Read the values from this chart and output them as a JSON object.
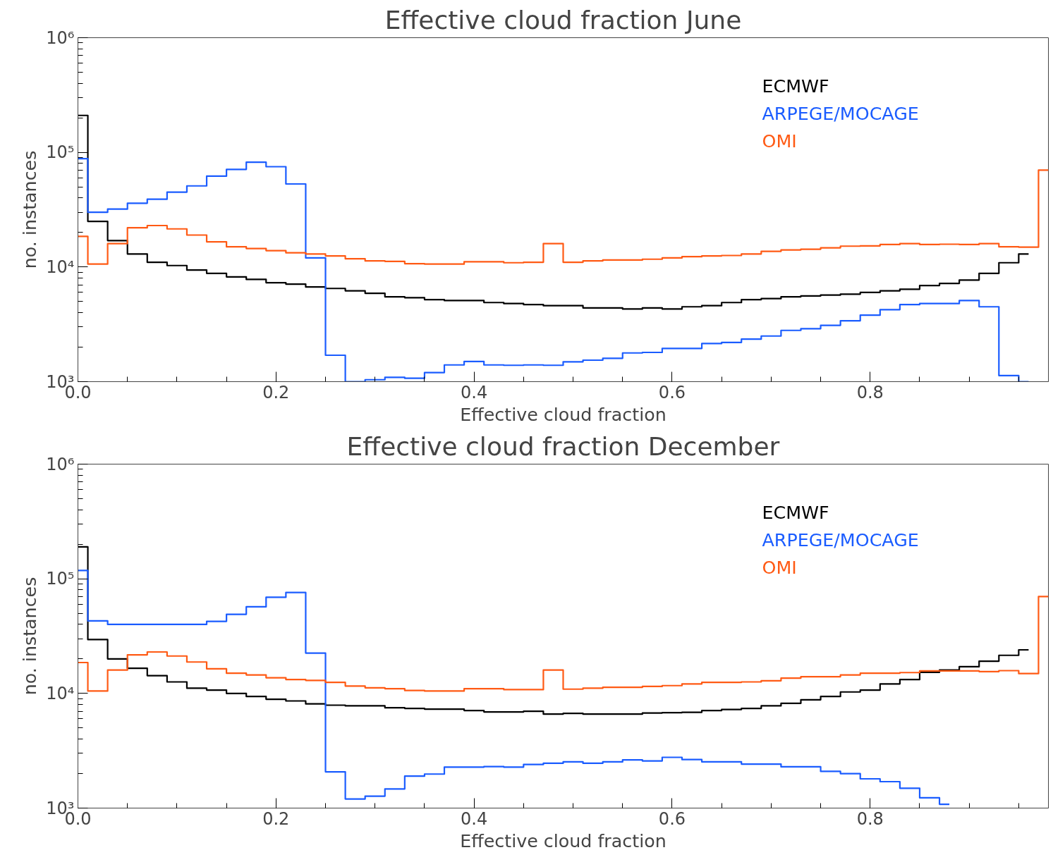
{
  "chart_data": [
    {
      "type": "step",
      "title": "Effective cloud fraction June",
      "xlabel": "Effective cloud fraction",
      "ylabel": "no. instances",
      "log": "y",
      "legend": "top right",
      "grid": false,
      "x": [
        0,
        0.02,
        0.04,
        0.06,
        0.08,
        0.1,
        0.12,
        0.14,
        0.16,
        0.18,
        0.2,
        0.22,
        0.24,
        0.26,
        0.28,
        0.3,
        0.32,
        0.34,
        0.36,
        0.38,
        0.4,
        0.42,
        0.44,
        0.46,
        0.48,
        0.5,
        0.52,
        0.54,
        0.56,
        0.58,
        0.6,
        0.62,
        0.64,
        0.66,
        0.68,
        0.7,
        0.72,
        0.74,
        0.76,
        0.78,
        0.8,
        0.82,
        0.84,
        0.86,
        0.88,
        0.9,
        0.92,
        0.94,
        0.96,
        0.98
      ],
      "xlim": [
        0,
        0.98
      ],
      "xticks": [
        {
          "value": 0,
          "label": "0.0"
        },
        0.2,
        0.4,
        0.6,
        0.8
      ],
      "ylim": [
        1000,
        1000000
      ],
      "yticks": [
        {
          "value": 1000,
          "label": "10³"
        },
        {
          "value": 10000,
          "label": "10⁴"
        },
        {
          "value": 100000,
          "label": "10⁵"
        },
        {
          "value": 1000000,
          "label": "10⁶"
        }
      ],
      "series": [
        {
          "name": "ECMWF",
          "color": "#000000",
          "values": [
            210000,
            25000,
            17000,
            13000,
            11000,
            10300,
            9400,
            8800,
            8200,
            7800,
            7300,
            7100,
            6700,
            6500,
            6200,
            5900,
            5500,
            5400,
            5200,
            5100,
            5100,
            4900,
            4800,
            4700,
            4600,
            4600,
            4400,
            4400,
            4300,
            4400,
            4300,
            4500,
            4600,
            4900,
            5200,
            5300,
            5500,
            5600,
            5700,
            5800,
            6000,
            6200,
            6400,
            6900,
            7200,
            7700,
            8800,
            10900,
            13000,
            null
          ]
        },
        {
          "name": "ARPEGE/MOCAGE",
          "color": "#1a5cff",
          "values": [
            88000,
            30000,
            32000,
            36000,
            39000,
            45000,
            51000,
            62000,
            71000,
            82000,
            75000,
            53000,
            12000,
            1700,
            1000,
            1040,
            1090,
            1070,
            1200,
            1400,
            1500,
            1400,
            1390,
            1400,
            1390,
            1490,
            1540,
            1600,
            1780,
            1800,
            1950,
            1950,
            2150,
            2200,
            2350,
            2500,
            2800,
            2900,
            3100,
            3400,
            3800,
            4250,
            4700,
            4800,
            4800,
            5100,
            4500,
            1130,
            1000,
            null
          ]
        },
        {
          "name": "OMI",
          "color": "#ff5a14",
          "values": [
            18500,
            10600,
            16000,
            22000,
            23000,
            21500,
            19000,
            16600,
            15000,
            14500,
            13900,
            13300,
            13000,
            12500,
            11800,
            11300,
            11200,
            10700,
            10600,
            10600,
            11100,
            11100,
            10900,
            11000,
            16000,
            11000,
            11300,
            11500,
            11500,
            11700,
            12000,
            12300,
            12500,
            12600,
            13000,
            13700,
            14100,
            14300,
            14700,
            15200,
            15300,
            15700,
            16000,
            15700,
            15800,
            15700,
            16000,
            15000,
            14900,
            70000
          ]
        }
      ]
    },
    {
      "type": "step",
      "title": "Effective cloud fraction December",
      "xlabel": "Effective cloud fraction",
      "ylabel": "no. instances",
      "log": "y",
      "legend": "top right",
      "grid": false,
      "x": [
        0,
        0.02,
        0.04,
        0.06,
        0.08,
        0.1,
        0.12,
        0.14,
        0.16,
        0.18,
        0.2,
        0.22,
        0.24,
        0.26,
        0.28,
        0.3,
        0.32,
        0.34,
        0.36,
        0.38,
        0.4,
        0.42,
        0.44,
        0.46,
        0.48,
        0.5,
        0.52,
        0.54,
        0.56,
        0.58,
        0.6,
        0.62,
        0.64,
        0.66,
        0.68,
        0.7,
        0.72,
        0.74,
        0.76,
        0.78,
        0.8,
        0.82,
        0.84,
        0.86,
        0.88,
        0.9,
        0.92,
        0.94,
        0.96,
        0.98
      ],
      "xlim": [
        0,
        0.98
      ],
      "xticks": [
        {
          "value": 0,
          "label": "0.0"
        },
        0.2,
        0.4,
        0.6,
        0.8
      ],
      "ylim": [
        1000,
        1000000
      ],
      "yticks": [
        {
          "value": 1000,
          "label": "10³"
        },
        {
          "value": 10000,
          "label": "10⁴"
        },
        {
          "value": 100000,
          "label": "10⁵"
        },
        {
          "value": 1000000,
          "label": "10⁶"
        }
      ],
      "series": [
        {
          "name": "ECMWF",
          "color": "#000000",
          "values": [
            190000,
            29500,
            20000,
            16600,
            14300,
            12600,
            11100,
            10700,
            10000,
            9400,
            8900,
            8600,
            8100,
            7900,
            7800,
            7800,
            7500,
            7400,
            7300,
            7300,
            7100,
            6900,
            6900,
            7000,
            6600,
            6700,
            6600,
            6600,
            6600,
            6750,
            6800,
            6850,
            7100,
            7250,
            7400,
            7800,
            8200,
            8800,
            9400,
            10300,
            10700,
            12100,
            13200,
            15300,
            16000,
            17100,
            19100,
            21500,
            24000,
            null
          ]
        },
        {
          "name": "ARPEGE/MOCAGE",
          "color": "#1a5cff",
          "values": [
            118000,
            43000,
            40000,
            40000,
            40000,
            40000,
            40000,
            42500,
            49000,
            57000,
            69000,
            76000,
            22500,
            2070,
            1200,
            1270,
            1470,
            1900,
            1980,
            2280,
            2280,
            2300,
            2280,
            2400,
            2460,
            2530,
            2460,
            2530,
            2630,
            2580,
            2770,
            2650,
            2530,
            2530,
            2420,
            2420,
            2290,
            2290,
            2090,
            2000,
            1800,
            1700,
            1490,
            1230,
            1080,
            null,
            null,
            null,
            null,
            null
          ]
        },
        {
          "name": "OMI",
          "color": "#ff5a14",
          "values": [
            18600,
            10500,
            16000,
            21700,
            23000,
            21200,
            18800,
            16400,
            15000,
            14500,
            13700,
            13200,
            13000,
            12500,
            11600,
            11200,
            11000,
            10600,
            10500,
            10500,
            11000,
            11000,
            10800,
            10800,
            16000,
            10900,
            11100,
            11300,
            11300,
            11500,
            11700,
            12100,
            12500,
            12500,
            12600,
            12900,
            13600,
            14000,
            14000,
            14500,
            15000,
            15000,
            15200,
            15700,
            15700,
            15700,
            15500,
            15800,
            14900,
            70000
          ]
        }
      ]
    }
  ]
}
